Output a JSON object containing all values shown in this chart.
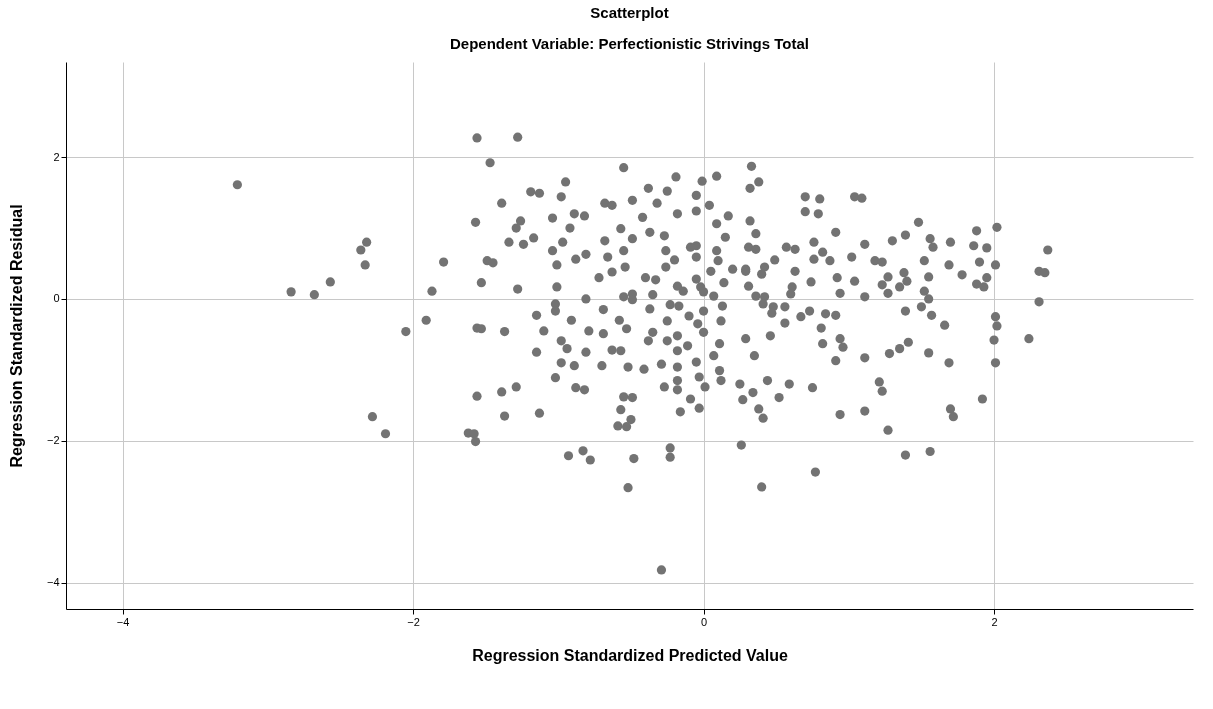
{
  "chart_data": {
    "type": "scatter",
    "title": "Scatterplot",
    "subtitle": "Dependent Variable: Perfectionistic Strivings Total",
    "xlabel": "Regression Standardized Predicted Value",
    "ylabel": "Regression Standardized Residual",
    "color": "#737373",
    "marker": "circle",
    "grid": true,
    "xlim": [
      -4.39,
      3.37
    ],
    "ylim": [
      -4.37,
      3.34
    ],
    "xticks": [
      -4,
      -2,
      0,
      2
    ],
    "yticks": [
      -4,
      -2,
      0,
      2
    ],
    "x": [
      -3.21,
      -2.84,
      -2.68,
      -2.57,
      -2.32,
      -2.36,
      -2.33,
      -2.28,
      -2.19,
      -2.05,
      -1.91,
      -1.87,
      -1.79,
      -1.62,
      -1.58,
      -1.57,
      -1.56,
      -1.28,
      -1.47,
      -1.39,
      -1.57,
      -1.29,
      -1.26,
      -1.34,
      -1.49,
      -1.45,
      -1.53,
      -1.28,
      -1.56,
      -1.53,
      -1.37,
      -1.56,
      -1.39,
      -1.29,
      -1.37,
      -0.55,
      -0.95,
      -1.19,
      -1.13,
      -0.98,
      -0.68,
      -0.63,
      -0.49,
      -0.38,
      -0.25,
      -0.19,
      -0.01,
      0.09,
      0.33,
      -0.05,
      0.04,
      -0.32,
      -1.04,
      -0.89,
      -0.82,
      -0.92,
      -1.24,
      -1.17,
      -1.04,
      -1.01,
      -0.97,
      -0.88,
      -0.81,
      -0.68,
      -0.66,
      -0.63,
      -0.57,
      -0.49,
      -0.55,
      -0.54,
      -0.72,
      -0.42,
      -0.37,
      -0.27,
      -0.26,
      -0.2,
      -0.26,
      -0.4,
      -0.33,
      -0.18,
      -0.05,
      -0.05,
      -0.09,
      -0.05,
      0.05,
      0.09,
      0.17,
      0.15,
      0.09,
      0.1,
      0.32,
      0.36,
      0.31,
      0.2,
      0.29,
      0.14,
      -0.02,
      -0.05,
      -0.18,
      -0.14,
      0.0,
      -1.01,
      -1.02,
      -1.02,
      -0.81,
      -0.55,
      -0.49,
      -0.49,
      -0.35,
      -0.37,
      -0.69,
      -0.23,
      -0.17,
      -0.1,
      0.0,
      0.07,
      0.13,
      -1.15,
      -1.1,
      -0.91,
      -0.79,
      -0.69,
      -0.58,
      -0.53,
      -0.35,
      -0.38,
      -0.25,
      -0.25,
      -0.18,
      -0.04,
      0.0,
      0.12,
      0.11,
      0.29,
      -1.15,
      -0.98,
      -0.94,
      -0.89,
      -0.98,
      -0.81,
      -0.63,
      -0.57,
      -0.7,
      -0.52,
      -0.41,
      -0.29,
      -0.11,
      -0.18,
      -0.18,
      -0.05,
      -0.03,
      0.01,
      0.07,
      0.11,
      0.12,
      0.25,
      0.35,
      -1.02,
      -1.13,
      -0.88,
      -0.82,
      -0.55,
      -0.49,
      -0.57,
      -0.59,
      -0.5,
      -0.53,
      -0.27,
      -0.18,
      -0.18,
      -0.09,
      -0.16,
      -0.03,
      0.27,
      0.34,
      0.38,
      0.26,
      -0.23,
      -0.83,
      -0.93,
      -0.78,
      -0.48,
      -0.52,
      -0.23,
      -0.29,
      0.4,
      0.77,
      0.59,
      0.75,
      0.52,
      0.44,
      0.41,
      0.38,
      0.32,
      0.7,
      0.8,
      0.7,
      0.79,
      1.04,
      1.09,
      0.91,
      1.48,
      1.39,
      1.3,
      1.11,
      1.56,
      1.58,
      1.7,
      1.88,
      2.02,
      1.86,
      1.95,
      1.9,
      2.01,
      1.69,
      1.78,
      1.52,
      1.55,
      1.52,
      1.55,
      1.5,
      1.57,
      1.66,
      1.39,
      1.88,
      1.95,
      1.93,
      1.38,
      1.4,
      1.35,
      1.27,
      1.23,
      1.27,
      1.18,
      1.23,
      1.11,
      1.04,
      1.02,
      0.94,
      0.92,
      0.74,
      0.63,
      0.61,
      0.6,
      0.76,
      0.82,
      0.87,
      0.76,
      0.63,
      0.57,
      0.49,
      0.42,
      0.4,
      0.36,
      0.29,
      0.31,
      0.36,
      0.42,
      0.41,
      0.48,
      0.47,
      0.56,
      0.56,
      0.67,
      0.73,
      0.84,
      0.91,
      0.81,
      0.82,
      0.46,
      0.94,
      0.96,
      0.91,
      1.11,
      1.28,
      1.35,
      1.41,
      1.55,
      1.69,
      2.01,
      2.02,
      2.0,
      2.01,
      2.24,
      0.94,
      1.11,
      1.21,
      1.23,
      1.27,
      1.7,
      1.72,
      1.92,
      1.39,
      1.56,
      2.37,
      2.31,
      2.35,
      2.31
    ],
    "values": [
      1.61,
      0.1,
      0.06,
      0.24,
      0.8,
      0.69,
      0.48,
      -1.66,
      -1.9,
      -0.46,
      -0.3,
      0.11,
      0.52,
      -1.89,
      -1.9,
      -2.01,
      2.27,
      2.28,
      1.92,
      1.35,
      1.08,
      1.0,
      1.1,
      0.8,
      0.54,
      0.51,
      0.23,
      0.14,
      -0.41,
      -0.42,
      -0.46,
      -1.37,
      -1.31,
      -1.24,
      -1.65,
      1.85,
      1.65,
      1.51,
      1.49,
      1.44,
      1.35,
      1.32,
      1.39,
      1.56,
      1.52,
      1.72,
      1.66,
      1.73,
      1.87,
      1.46,
      1.32,
      1.35,
      1.14,
      1.2,
      1.17,
      1.0,
      0.77,
      0.86,
      0.68,
      0.48,
      0.8,
      0.56,
      0.63,
      0.82,
      0.59,
      0.38,
      0.99,
      0.85,
      0.68,
      0.45,
      0.3,
      1.15,
      0.94,
      0.89,
      0.68,
      0.55,
      0.45,
      0.3,
      0.27,
      1.2,
      1.24,
      0.75,
      0.73,
      0.59,
      0.39,
      1.06,
      1.17,
      0.87,
      0.68,
      0.54,
      1.1,
      0.92,
      0.73,
      0.42,
      0.42,
      0.23,
      0.17,
      0.28,
      0.18,
      0.11,
      0.1,
      0.17,
      -0.07,
      -0.17,
      0.0,
      0.03,
      0.07,
      -0.01,
      0.06,
      -0.14,
      -0.15,
      -0.08,
      -0.1,
      -0.24,
      -0.17,
      0.04,
      -0.1,
      -0.23,
      -0.45,
      -0.3,
      -0.45,
      -0.49,
      -0.3,
      -0.42,
      -0.47,
      -0.59,
      -0.31,
      -0.59,
      -0.52,
      -0.35,
      -0.47,
      -0.31,
      -0.63,
      -0.56,
      -0.75,
      -0.59,
      -0.7,
      -0.94,
      -0.9,
      -0.75,
      -0.72,
      -0.73,
      -0.94,
      -0.96,
      -0.99,
      -0.92,
      -0.66,
      -0.73,
      -0.96,
      -0.89,
      -1.1,
      -1.24,
      -0.8,
      -1.01,
      -1.15,
      -1.2,
      -0.8,
      -1.11,
      -1.61,
      -1.25,
      -1.28,
      -1.38,
      -1.39,
      -1.56,
      -1.79,
      -1.7,
      -1.8,
      -1.24,
      -1.15,
      -1.28,
      -1.41,
      -1.59,
      -1.54,
      -1.42,
      -1.32,
      -1.55,
      -2.06,
      -2.1,
      -2.14,
      -2.21,
      -2.27,
      -2.25,
      -2.66,
      -2.23,
      -3.82,
      -2.65,
      -2.44,
      -1.2,
      -1.25,
      -1.39,
      -1.15,
      -1.68,
      1.65,
      1.56,
      1.44,
      1.41,
      1.23,
      1.2,
      1.44,
      1.42,
      0.94,
      1.08,
      0.9,
      0.82,
      0.77,
      0.85,
      0.73,
      0.8,
      0.96,
      1.01,
      0.75,
      0.72,
      0.52,
      0.48,
      0.48,
      0.34,
      0.54,
      0.31,
      0.11,
      0.0,
      -0.11,
      -0.23,
      -0.37,
      -0.17,
      0.21,
      0.3,
      0.17,
      0.37,
      0.25,
      0.17,
      0.31,
      0.2,
      0.08,
      0.54,
      0.52,
      0.03,
      0.25,
      0.59,
      0.08,
      0.3,
      0.24,
      0.39,
      0.17,
      0.07,
      0.8,
      0.66,
      0.54,
      0.56,
      0.7,
      0.73,
      0.55,
      0.45,
      0.35,
      0.7,
      0.39,
      0.18,
      0.04,
      0.03,
      -0.07,
      -0.11,
      -0.2,
      -0.11,
      -0.34,
      -0.25,
      -0.17,
      -0.21,
      -0.23,
      -0.41,
      -0.63,
      -0.52,
      -0.56,
      -0.68,
      -0.87,
      -0.83,
      -0.77,
      -0.7,
      -0.61,
      -0.76,
      -0.9,
      -0.25,
      -0.38,
      -0.58,
      -0.9,
      -0.56,
      -1.63,
      -1.58,
      -1.17,
      -1.3,
      -1.85,
      -1.55,
      -1.66,
      -1.41,
      -2.2,
      -2.15,
      0.69,
      0.39,
      0.37,
      -0.04
    ]
  }
}
